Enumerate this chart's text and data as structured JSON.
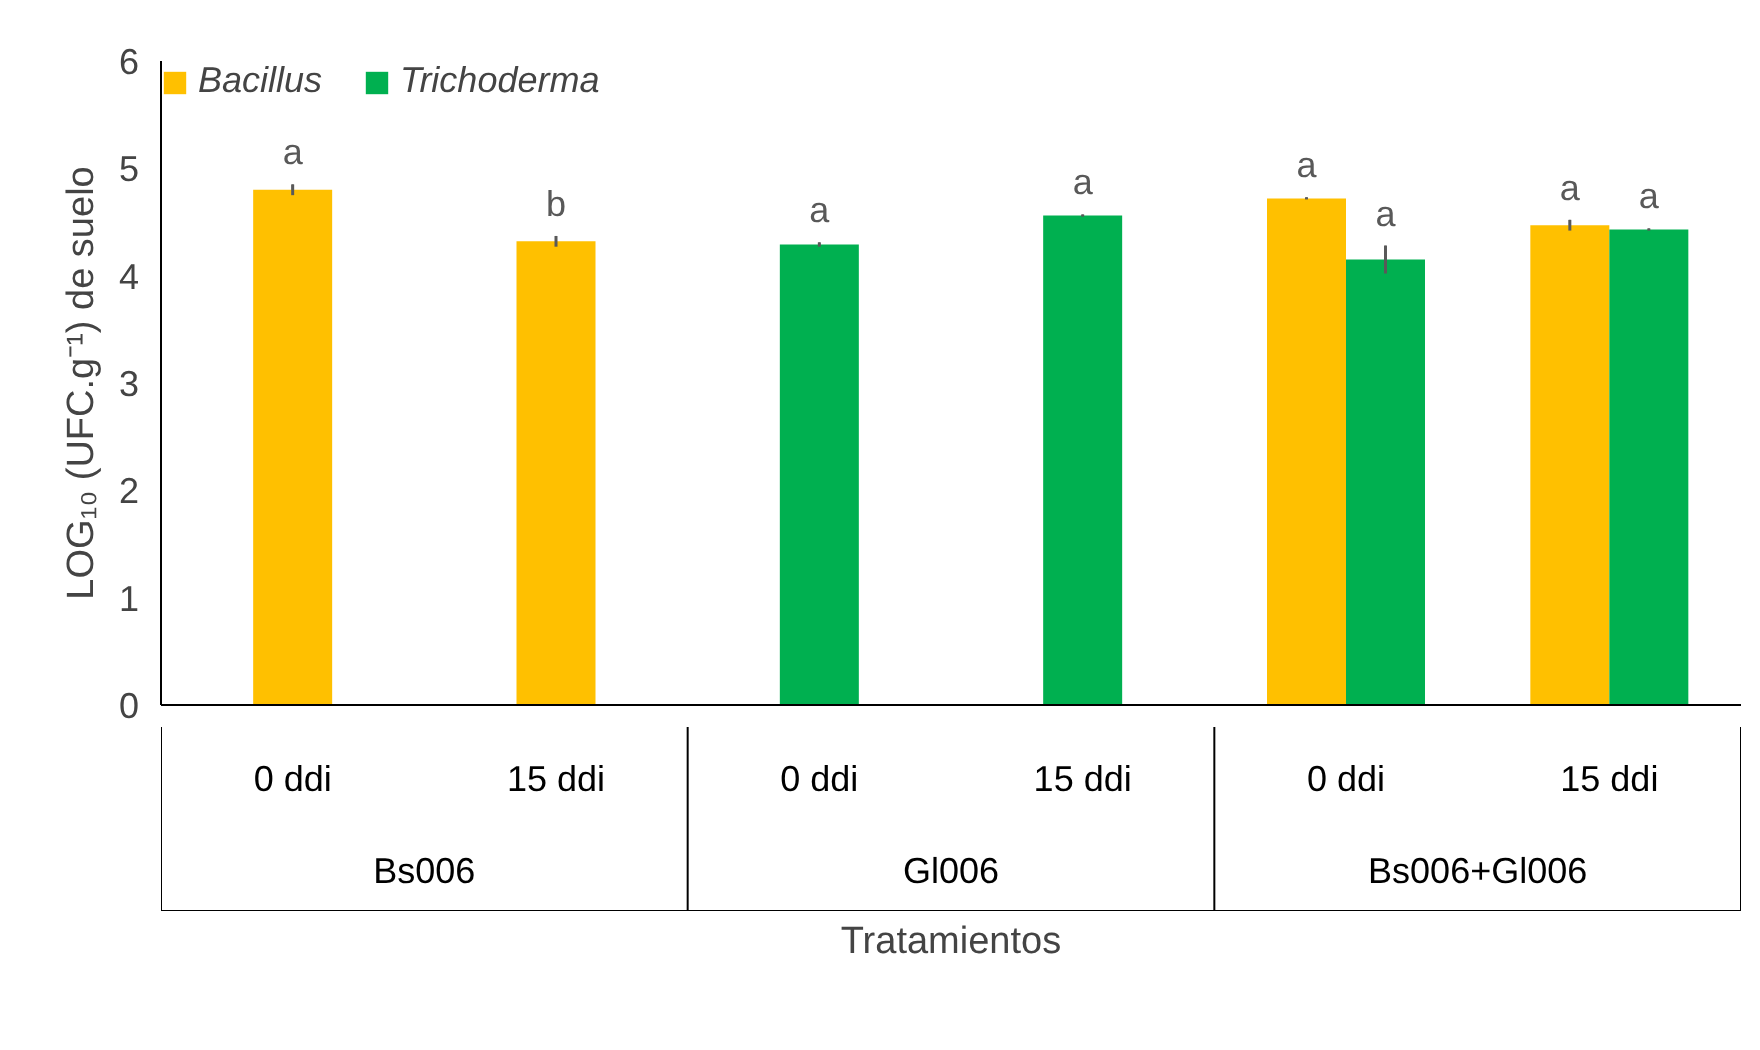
{
  "chart_data": {
    "type": "bar",
    "xlabel": "Tratamientos",
    "ylabel": "LOG₁₀ (UFC.g⁻¹) de suelo",
    "categories": [
      "0 ddi",
      "15 ddi",
      "0 ddi",
      "15 ddi",
      "0 ddi",
      "15 ddi"
    ],
    "annotations": [
      "Bs006",
      "Gl006",
      "Bs006+Gl006"
    ],
    "series": [
      {
        "name": "Bacillus",
        "color": "#ffc000",
        "values": [
          4.8,
          4.32,
          null,
          null,
          4.72,
          4.47
        ],
        "errors": [
          0.05,
          0.05,
          null,
          null,
          0.01,
          0.05
        ],
        "value_labels": [
          "a",
          "b",
          null,
          null,
          "a",
          "a"
        ]
      },
      {
        "name": "Trichoderma",
        "color": "#00b050",
        "values": [
          null,
          null,
          4.29,
          4.56,
          4.15,
          4.43
        ],
        "errors": [
          null,
          null,
          0.02,
          0.01,
          0.13,
          0.01
        ],
        "value_labels": [
          null,
          null,
          "a",
          "a",
          "a",
          "a"
        ]
      }
    ],
    "ylim": [
      0,
      6
    ],
    "yticks": [
      0,
      1,
      2,
      3,
      4,
      5,
      6
    ],
    "grid": false,
    "legend": "top left"
  }
}
